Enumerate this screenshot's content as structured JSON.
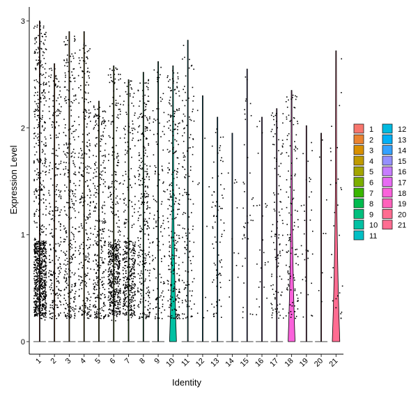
{
  "chart_data": {
    "type": "violin",
    "xlabel": "Identity",
    "ylabel": "Expression Level",
    "ylim": [
      0,
      3
    ],
    "yticks": [
      0,
      1,
      2,
      3
    ],
    "grid": false,
    "legend_position": "right",
    "categories": [
      "1",
      "2",
      "3",
      "4",
      "5",
      "6",
      "7",
      "8",
      "9",
      "10",
      "11",
      "12",
      "13",
      "14",
      "15",
      "16",
      "17",
      "18",
      "19",
      "20",
      "21"
    ],
    "colors": [
      "#F8766D",
      "#EA8331",
      "#D89000",
      "#C09B00",
      "#A3A500",
      "#7CAE00",
      "#39B600",
      "#00BB4E",
      "#00BF7D",
      "#00C1A3",
      "#00BFC4",
      "#00BAE0",
      "#00B0F6",
      "#35A2FF",
      "#9590FF",
      "#C77CFF",
      "#E76BF3",
      "#FA62DB",
      "#FF62BC",
      "#FF6C91",
      "#FF6C91"
    ],
    "violin_max": [
      3.0,
      2.6,
      2.9,
      2.9,
      2.25,
      2.58,
      2.45,
      2.52,
      2.62,
      2.58,
      2.82,
      2.3,
      2.1,
      1.95,
      2.55,
      2.1,
      2.18,
      2.35,
      2.02,
      1.95,
      2.72
    ],
    "point_density": [
      900,
      260,
      320,
      280,
      300,
      520,
      420,
      300,
      130,
      250,
      140,
      10,
      80,
      12,
      40,
      25,
      110,
      120,
      35,
      8,
      30
    ],
    "violin_peak_width": [
      0,
      0,
      0,
      0,
      0,
      0,
      0,
      0,
      0,
      0.55,
      0,
      0,
      0,
      0,
      0,
      0,
      0,
      0.55,
      0,
      0,
      0.6
    ]
  }
}
